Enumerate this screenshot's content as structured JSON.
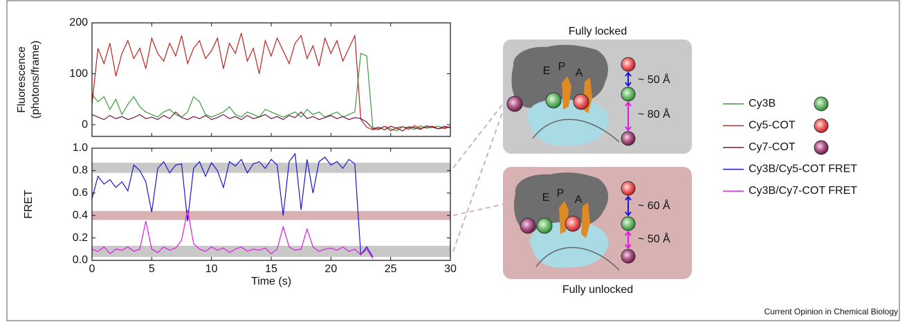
{
  "chart_data": [
    {
      "type": "line",
      "ylabel": [
        "Fluorescence",
        "(photons/frame)"
      ],
      "x": [
        0,
        0.5,
        1,
        1.5,
        2,
        2.5,
        3,
        3.5,
        4,
        4.5,
        5,
        5.5,
        6,
        6.5,
        7,
        7.5,
        8,
        8.5,
        9,
        9.5,
        10,
        10.5,
        11,
        11.5,
        12,
        12.5,
        13,
        13.5,
        14,
        14.5,
        15,
        15.5,
        16,
        16.5,
        17,
        17.5,
        18,
        18.5,
        19,
        19.5,
        20,
        20.5,
        21,
        21.5,
        22,
        22.5,
        23,
        23.5,
        24,
        24.5,
        25,
        25.5,
        26,
        26.5,
        27,
        27.5,
        28,
        28.5,
        29,
        29.5,
        30
      ],
      "xlim": [
        0,
        30
      ],
      "xticks": [
        0,
        5,
        10,
        15,
        20,
        25,
        30
      ],
      "show_xtick_labels": false,
      "ylim": [
        -23,
        200
      ],
      "yticks": [
        0,
        100,
        200
      ],
      "series": [
        {
          "name": "Cy3B",
          "color": "#3d9a3d",
          "values": [
            60,
            45,
            55,
            30,
            50,
            20,
            40,
            55,
            35,
            25,
            20,
            15,
            25,
            30,
            20,
            15,
            25,
            55,
            45,
            20,
            15,
            20,
            25,
            35,
            20,
            15,
            25,
            20,
            15,
            30,
            25,
            20,
            15,
            20,
            25,
            15,
            30,
            20,
            25,
            15,
            20,
            25,
            15,
            20,
            25,
            140,
            135,
            -5,
            -10,
            -3,
            -8,
            -12,
            -4,
            -6,
            -9,
            -2,
            -7,
            -5,
            -3,
            -8,
            -4
          ]
        },
        {
          "name": "Cy5-COT",
          "color": "#c0211f",
          "values": [
            40,
            150,
            120,
            160,
            95,
            140,
            165,
            130,
            150,
            110,
            170,
            140,
            125,
            160,
            135,
            175,
            120,
            150,
            165,
            130,
            145,
            170,
            110,
            160,
            140,
            180,
            125,
            150,
            100,
            165,
            135,
            170,
            145,
            120,
            160,
            175,
            130,
            155,
            115,
            170,
            140,
            165,
            125,
            150,
            175,
            10,
            -5,
            -10,
            -8,
            -3,
            -12,
            -6,
            -4,
            -9,
            -2,
            -7,
            -5,
            -3,
            -8,
            -6,
            -4
          ]
        },
        {
          "name": "Cy7-COT",
          "color": "#6e1a3e",
          "values": [
            20,
            15,
            10,
            18,
            12,
            16,
            10,
            14,
            20,
            12,
            15,
            10,
            18,
            12,
            25,
            14,
            10,
            16,
            12,
            18,
            10,
            14,
            20,
            12,
            16,
            10,
            18,
            12,
            15,
            20,
            12,
            16,
            10,
            18,
            14,
            25,
            12,
            16,
            10,
            14,
            18,
            12,
            16,
            10,
            14,
            12,
            5,
            -8,
            -5,
            -10,
            -3,
            -7,
            -12,
            -4,
            -6,
            -9,
            -2,
            -5,
            -8,
            -3,
            -6
          ]
        }
      ]
    },
    {
      "type": "line",
      "ylabel": [
        "FRET"
      ],
      "xlabel": "Time (s)",
      "x": [
        0,
        0.5,
        1,
        1.5,
        2,
        2.5,
        3,
        3.5,
        4,
        4.5,
        5,
        5.5,
        6,
        6.5,
        7,
        7.5,
        8,
        8.5,
        9,
        9.5,
        10,
        10.5,
        11,
        11.5,
        12,
        12.5,
        13,
        13.5,
        14,
        14.5,
        15,
        15.5,
        16,
        16.5,
        17,
        17.5,
        18,
        18.5,
        19,
        19.5,
        20,
        20.5,
        21,
        21.5,
        22,
        22.5,
        23,
        23.5,
        24,
        24.5,
        25,
        25.5,
        26,
        26.5,
        27,
        27.5,
        28,
        28.5,
        29,
        29.5,
        30
      ],
      "xlim": [
        0,
        30
      ],
      "xticks": [
        0,
        5,
        10,
        15,
        20,
        25,
        30
      ],
      "show_xtick_labels": true,
      "ylim": [
        0,
        1
      ],
      "yticks": [
        {
          "value": 0,
          "label": "0.0"
        },
        0.2,
        0.4,
        0.6,
        0.8,
        {
          "value": 1,
          "label": "1.0"
        }
      ],
      "bands": [
        {
          "from": 0.78,
          "to": 0.87,
          "color": "#c8c8c8"
        },
        {
          "from": 0.36,
          "to": 0.44,
          "color": "#d8b2b2"
        },
        {
          "from": 0.03,
          "to": 0.13,
          "color": "#c8c8c8"
        }
      ],
      "series": [
        {
          "name": "Cy3B/Cy5-COT FRET",
          "color": "#1a14d8",
          "values": [
            0.55,
            0.75,
            0.68,
            0.72,
            0.65,
            0.7,
            0.62,
            0.85,
            0.8,
            0.7,
            0.43,
            0.82,
            0.88,
            0.78,
            0.85,
            0.86,
            0.35,
            0.82,
            0.88,
            0.75,
            0.87,
            0.8,
            0.65,
            0.88,
            0.84,
            0.9,
            0.78,
            0.86,
            0.88,
            0.82,
            0.9,
            0.85,
            0.4,
            0.88,
            0.95,
            0.45,
            0.9,
            0.6,
            0.88,
            0.92,
            0.85,
            0.88,
            0.82,
            0.9,
            0.86,
            0.05,
            0.12,
            0.03,
            null,
            null,
            null,
            null,
            null,
            null,
            null,
            null,
            null,
            null,
            null,
            null,
            null
          ]
        },
        {
          "name": "Cy3B/Cy7-COT FRET",
          "color": "#e21ae2",
          "values": [
            0.1,
            0.08,
            0.12,
            0.06,
            0.1,
            0.09,
            0.12,
            0.08,
            0.1,
            0.35,
            0.1,
            0.07,
            0.12,
            0.09,
            0.11,
            0.18,
            0.45,
            0.15,
            0.1,
            0.08,
            0.12,
            0.09,
            0.11,
            0.07,
            0.1,
            0.12,
            0.08,
            0.1,
            0.09,
            0.11,
            0.06,
            0.1,
            0.3,
            0.12,
            0.09,
            0.1,
            0.28,
            0.12,
            0.08,
            0.1,
            0.11,
            0.09,
            0.12,
            0.08,
            0.1,
            0.05,
            0.1,
            0.02,
            null,
            null,
            null,
            null,
            null,
            null,
            null,
            null,
            null,
            null,
            null,
            null,
            null
          ]
        }
      ]
    }
  ],
  "diagram": {
    "locked": {
      "title": "Fully locked",
      "sites": [
        "E",
        "P",
        "A"
      ],
      "distances": [
        "~ 50 Å",
        "~ 80 Å"
      ]
    },
    "unlocked": {
      "title": "Fully unlocked",
      "sites": [
        "E",
        "P",
        "A"
      ],
      "distances": [
        "~ 60 Å",
        "~ 50 Å"
      ]
    }
  },
  "credit": "Current Opinion in Chemical Biology"
}
